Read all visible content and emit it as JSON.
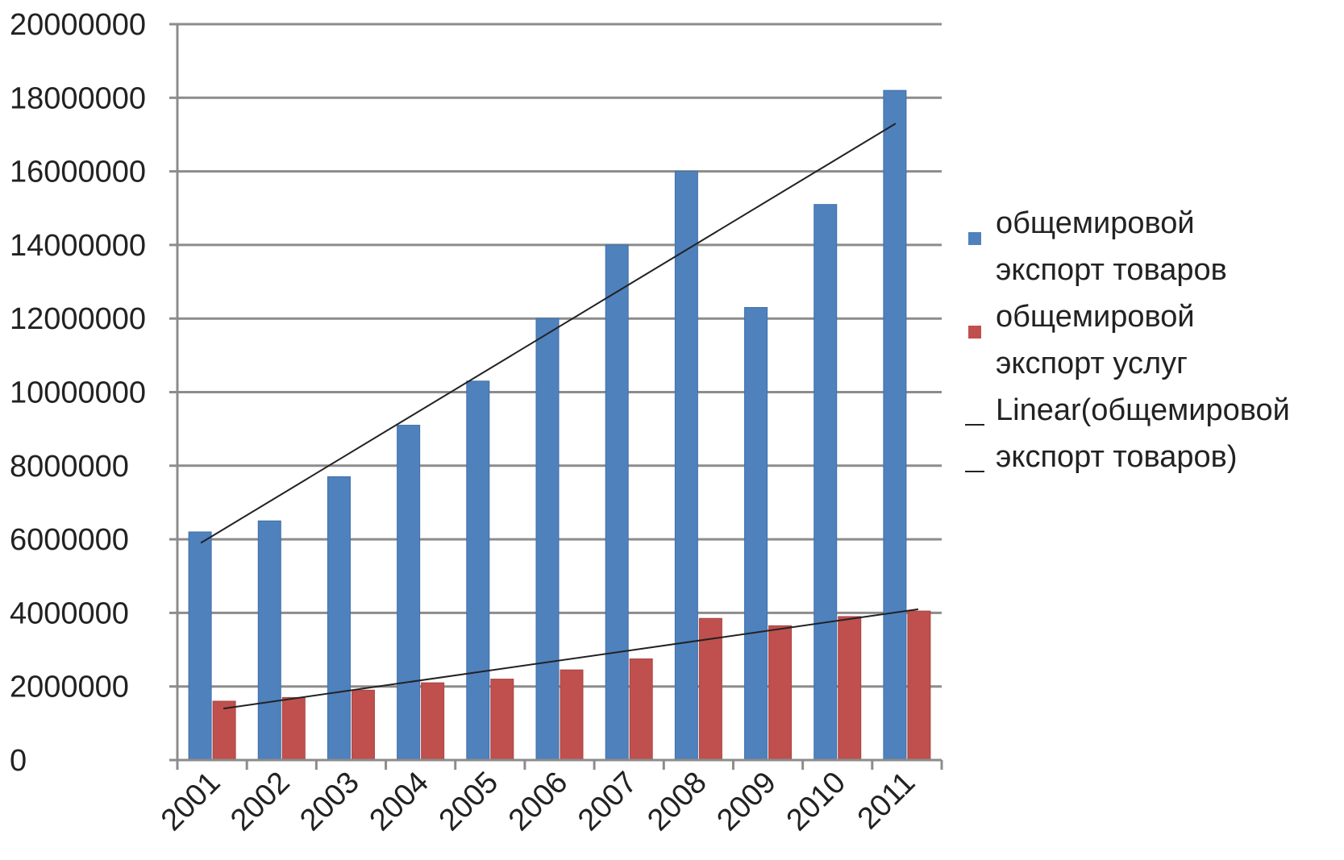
{
  "chart_data": {
    "type": "bar",
    "categories": [
      "2001",
      "2002",
      "2003",
      "2004",
      "2005",
      "2006",
      "2007",
      "2008",
      "2009",
      "2010",
      "2011"
    ],
    "series": [
      {
        "name": "общемировой экспорт товаров",
        "color": "#4f81bd",
        "values": [
          6200000,
          6500000,
          7700000,
          9100000,
          10300000,
          12000000,
          14000000,
          16000000,
          12300000,
          15100000,
          18200000
        ]
      },
      {
        "name": "общемировой экспорт услуг",
        "color": "#c0504d",
        "values": [
          1600000,
          1700000,
          1900000,
          2100000,
          2200000,
          2450000,
          2750000,
          3850000,
          3650000,
          3900000,
          4050000
        ]
      }
    ],
    "trendlines": [
      {
        "name": "Linear(общемировой экспорт товаров)",
        "of_series": 0,
        "type": "linear",
        "color": "#222222",
        "start": 5900000,
        "end": 17300000
      },
      {
        "of_series": 1,
        "type": "linear",
        "color": "#222222",
        "start": 1400000,
        "end": 4100000
      }
    ],
    "ylim": [
      0,
      20000000
    ],
    "yticks": [
      "0",
      "2000000",
      "4000000",
      "6000000",
      "8000000",
      "10000000",
      "12000000",
      "14000000",
      "16000000",
      "18000000",
      "20000000"
    ],
    "grid": true,
    "legend_position": "right",
    "title": "",
    "xlabel": "",
    "ylabel": ""
  },
  "legend": {
    "items": [
      {
        "label": "общемировой\nэкспорт товаров",
        "kind": "bar",
        "color": "#4f81bd"
      },
      {
        "label": "общемировой\nэкспорт услуг",
        "kind": "bar",
        "color": "#c0504d"
      },
      {
        "label": "Linear(общемировой\nэкспорт товаров)",
        "kind": "line",
        "color": "#222222"
      }
    ]
  }
}
